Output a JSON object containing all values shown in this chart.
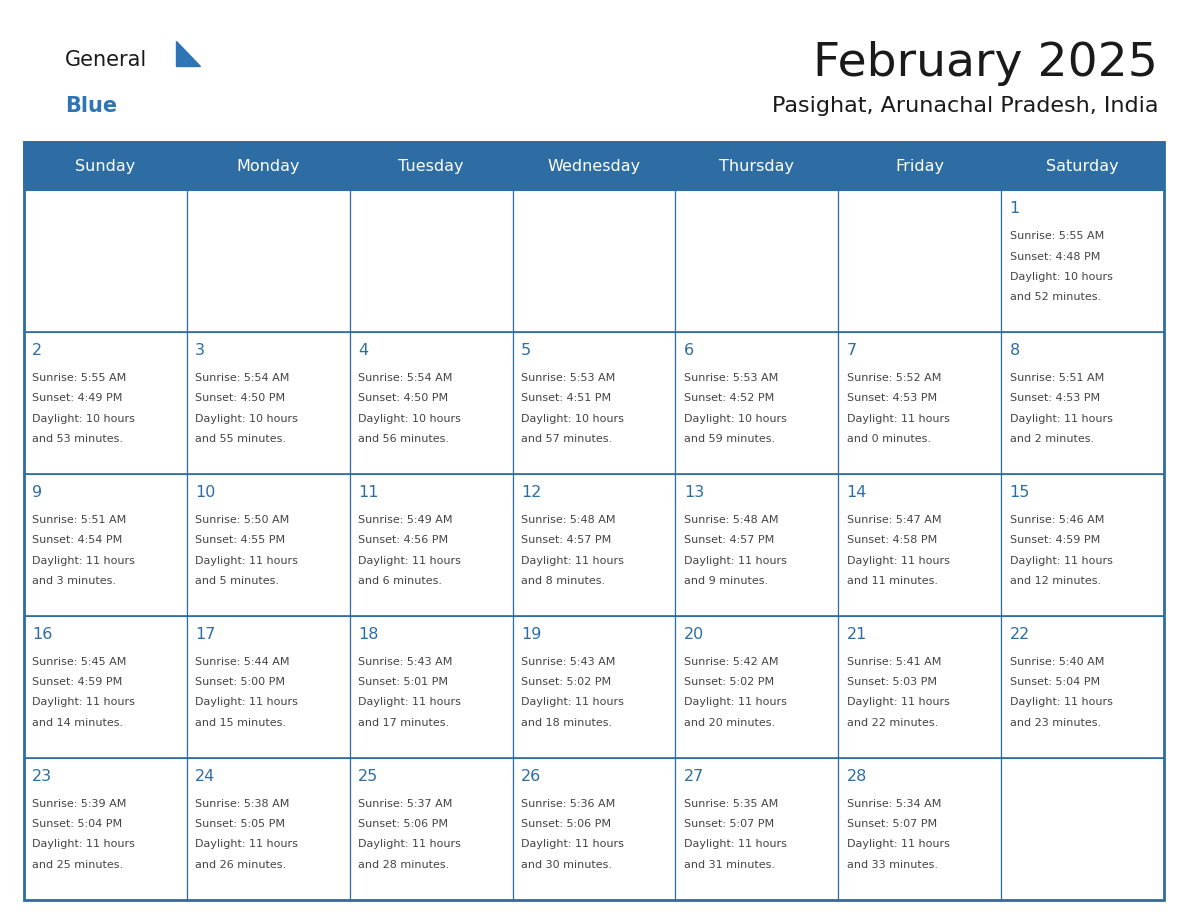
{
  "title": "February 2025",
  "subtitle": "Pasighat, Arunachal Pradesh, India",
  "days_of_week": [
    "Sunday",
    "Monday",
    "Tuesday",
    "Wednesday",
    "Thursday",
    "Friday",
    "Saturday"
  ],
  "header_bg": "#2E6DA4",
  "header_text": "#FFFFFF",
  "cell_bg": "#FFFFFF",
  "cell_text": "#444444",
  "day_num_color": "#2E6DA4",
  "border_color": "#2E6DA4",
  "title_color": "#1a1a1a",
  "subtitle_color": "#1a1a1a",
  "logo_general_color": "#1a1a1a",
  "logo_blue_color": "#2E75B6",
  "calendar_data": [
    [
      null,
      null,
      null,
      null,
      null,
      null,
      {
        "day": 1,
        "sunrise": "5:55 AM",
        "sunset": "4:48 PM",
        "daylight_line1": "Daylight: 10 hours",
        "daylight_line2": "and 52 minutes."
      }
    ],
    [
      {
        "day": 2,
        "sunrise": "5:55 AM",
        "sunset": "4:49 PM",
        "daylight_line1": "Daylight: 10 hours",
        "daylight_line2": "and 53 minutes."
      },
      {
        "day": 3,
        "sunrise": "5:54 AM",
        "sunset": "4:50 PM",
        "daylight_line1": "Daylight: 10 hours",
        "daylight_line2": "and 55 minutes."
      },
      {
        "day": 4,
        "sunrise": "5:54 AM",
        "sunset": "4:50 PM",
        "daylight_line1": "Daylight: 10 hours",
        "daylight_line2": "and 56 minutes."
      },
      {
        "day": 5,
        "sunrise": "5:53 AM",
        "sunset": "4:51 PM",
        "daylight_line1": "Daylight: 10 hours",
        "daylight_line2": "and 57 minutes."
      },
      {
        "day": 6,
        "sunrise": "5:53 AM",
        "sunset": "4:52 PM",
        "daylight_line1": "Daylight: 10 hours",
        "daylight_line2": "and 59 minutes."
      },
      {
        "day": 7,
        "sunrise": "5:52 AM",
        "sunset": "4:53 PM",
        "daylight_line1": "Daylight: 11 hours",
        "daylight_line2": "and 0 minutes."
      },
      {
        "day": 8,
        "sunrise": "5:51 AM",
        "sunset": "4:53 PM",
        "daylight_line1": "Daylight: 11 hours",
        "daylight_line2": "and 2 minutes."
      }
    ],
    [
      {
        "day": 9,
        "sunrise": "5:51 AM",
        "sunset": "4:54 PM",
        "daylight_line1": "Daylight: 11 hours",
        "daylight_line2": "and 3 minutes."
      },
      {
        "day": 10,
        "sunrise": "5:50 AM",
        "sunset": "4:55 PM",
        "daylight_line1": "Daylight: 11 hours",
        "daylight_line2": "and 5 minutes."
      },
      {
        "day": 11,
        "sunrise": "5:49 AM",
        "sunset": "4:56 PM",
        "daylight_line1": "Daylight: 11 hours",
        "daylight_line2": "and 6 minutes."
      },
      {
        "day": 12,
        "sunrise": "5:48 AM",
        "sunset": "4:57 PM",
        "daylight_line1": "Daylight: 11 hours",
        "daylight_line2": "and 8 minutes."
      },
      {
        "day": 13,
        "sunrise": "5:48 AM",
        "sunset": "4:57 PM",
        "daylight_line1": "Daylight: 11 hours",
        "daylight_line2": "and 9 minutes."
      },
      {
        "day": 14,
        "sunrise": "5:47 AM",
        "sunset": "4:58 PM",
        "daylight_line1": "Daylight: 11 hours",
        "daylight_line2": "and 11 minutes."
      },
      {
        "day": 15,
        "sunrise": "5:46 AM",
        "sunset": "4:59 PM",
        "daylight_line1": "Daylight: 11 hours",
        "daylight_line2": "and 12 minutes."
      }
    ],
    [
      {
        "day": 16,
        "sunrise": "5:45 AM",
        "sunset": "4:59 PM",
        "daylight_line1": "Daylight: 11 hours",
        "daylight_line2": "and 14 minutes."
      },
      {
        "day": 17,
        "sunrise": "5:44 AM",
        "sunset": "5:00 PM",
        "daylight_line1": "Daylight: 11 hours",
        "daylight_line2": "and 15 minutes."
      },
      {
        "day": 18,
        "sunrise": "5:43 AM",
        "sunset": "5:01 PM",
        "daylight_line1": "Daylight: 11 hours",
        "daylight_line2": "and 17 minutes."
      },
      {
        "day": 19,
        "sunrise": "5:43 AM",
        "sunset": "5:02 PM",
        "daylight_line1": "Daylight: 11 hours",
        "daylight_line2": "and 18 minutes."
      },
      {
        "day": 20,
        "sunrise": "5:42 AM",
        "sunset": "5:02 PM",
        "daylight_line1": "Daylight: 11 hours",
        "daylight_line2": "and 20 minutes."
      },
      {
        "day": 21,
        "sunrise": "5:41 AM",
        "sunset": "5:03 PM",
        "daylight_line1": "Daylight: 11 hours",
        "daylight_line2": "and 22 minutes."
      },
      {
        "day": 22,
        "sunrise": "5:40 AM",
        "sunset": "5:04 PM",
        "daylight_line1": "Daylight: 11 hours",
        "daylight_line2": "and 23 minutes."
      }
    ],
    [
      {
        "day": 23,
        "sunrise": "5:39 AM",
        "sunset": "5:04 PM",
        "daylight_line1": "Daylight: 11 hours",
        "daylight_line2": "and 25 minutes."
      },
      {
        "day": 24,
        "sunrise": "5:38 AM",
        "sunset": "5:05 PM",
        "daylight_line1": "Daylight: 11 hours",
        "daylight_line2": "and 26 minutes."
      },
      {
        "day": 25,
        "sunrise": "5:37 AM",
        "sunset": "5:06 PM",
        "daylight_line1": "Daylight: 11 hours",
        "daylight_line2": "and 28 minutes."
      },
      {
        "day": 26,
        "sunrise": "5:36 AM",
        "sunset": "5:06 PM",
        "daylight_line1": "Daylight: 11 hours",
        "daylight_line2": "and 30 minutes."
      },
      {
        "day": 27,
        "sunrise": "5:35 AM",
        "sunset": "5:07 PM",
        "daylight_line1": "Daylight: 11 hours",
        "daylight_line2": "and 31 minutes."
      },
      {
        "day": 28,
        "sunrise": "5:34 AM",
        "sunset": "5:07 PM",
        "daylight_line1": "Daylight: 11 hours",
        "daylight_line2": "and 33 minutes."
      },
      null
    ]
  ]
}
